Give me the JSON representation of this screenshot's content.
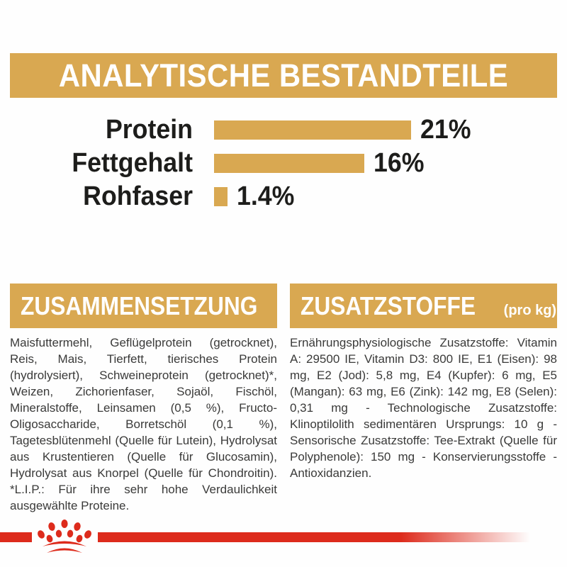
{
  "page": {
    "title_banner": "ANALYTISCHE BESTANDTEILE"
  },
  "chart_data": {
    "type": "bar",
    "orientation": "horizontal",
    "title": "ANALYTISCHE BESTANDTEILE",
    "categories": [
      "Protein",
      "Fettgehalt",
      "Rohfaser"
    ],
    "values": [
      21,
      16,
      1.4
    ],
    "value_labels": [
      "21%",
      "16%",
      "1.4%"
    ],
    "unit": "%",
    "xlim": [
      0,
      21
    ],
    "grid": false,
    "legend": "none",
    "bar_color": "#d9a851",
    "label_color": "#1d1d1b"
  },
  "sections": {
    "composition": {
      "header": "ZUSAMMENSETZUNG",
      "body": "Maisfuttermehl, Geflügelprotein (getrocknet), Reis, Mais, Tierfett, tierisches Protein (hydrolysiert), Schweineprotein (getrocknet)*, Weizen, Zichorienfaser, Sojaöl, Fischöl, Mineralstoffe, Leinsamen (0,5 %), Fructo-Oligosaccharide, Borretschöl (0,1 %), Tagetesblütenmehl (Quelle für Lutein), Hydrolysat aus Krustentieren (Quelle für Glucosamin), Hydrolysat aus Knorpel (Quelle für Chondroitin). *L.I.P.: Für ihre sehr hohe Verdaulichkeit ausgewählte Proteine."
    },
    "additives": {
      "header": "ZUSATZSTOFFE",
      "header_suffix": "(pro kg)",
      "body": "Ernährungsphysiologische Zusatzstoffe: Vitamin A: 29500 IE, Vitamin D3: 800 IE, E1 (Eisen): 98 mg, E2 (Jod): 5,8 mg, E4 (Kupfer): 6 mg, E5 (Mangan): 63 mg, E6 (Zink): 142 mg, E8 (Selen): 0,31 mg - Technologische Zusatzstoffe: Klinoptilolith sedimentären Ursprungs: 10 g - Sensorische Zusatzstoffe: Tee-Extrakt (Quelle für Polyphenole): 150 mg - Konservierungsstoffe - Antioxidanzien."
    }
  },
  "footer": {
    "logo": "royal-canin-crown"
  },
  "colors": {
    "gold": "#d9a851",
    "red": "#dd2b1c",
    "heading_text": "#ffffff",
    "chart_text": "#1d1d1b",
    "body_text": "#3a3a39",
    "background": "#fefefe"
  }
}
